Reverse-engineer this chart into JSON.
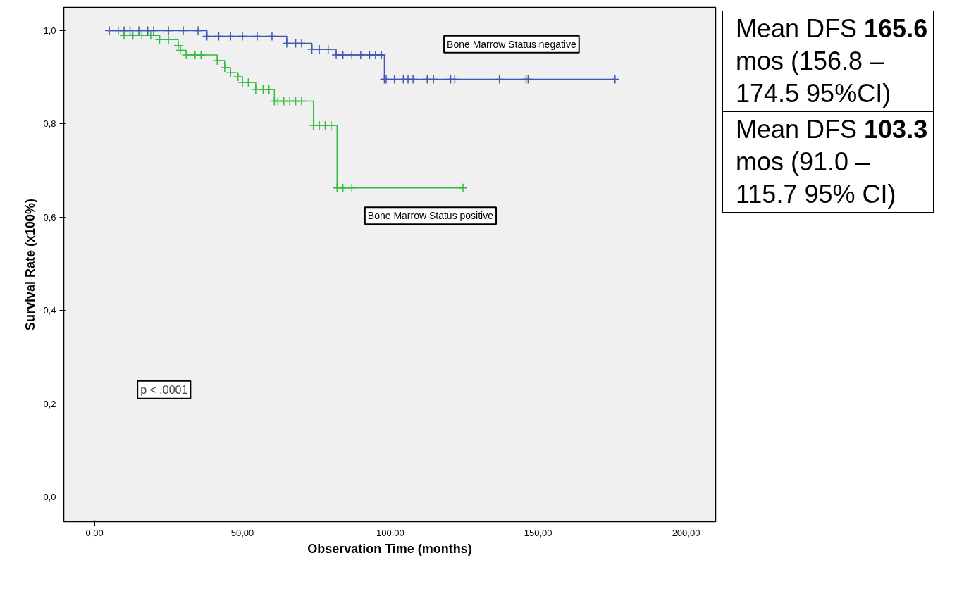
{
  "chart_data": {
    "type": "step",
    "xlabel": "Observation Time (months)",
    "ylabel": "Survival Rate (x100%)",
    "xlim": [
      -10.4,
      210
    ],
    "ylim": [
      -0.053,
      1.05
    ],
    "xticks": [
      {
        "value": 0,
        "label": "0,00"
      },
      {
        "value": 50,
        "label": "50,00"
      },
      {
        "value": 100,
        "label": "100,00"
      },
      {
        "value": 150,
        "label": "150,00"
      },
      {
        "value": 200,
        "label": "200,00"
      }
    ],
    "yticks": [
      {
        "value": 0,
        "label": "0,0"
      },
      {
        "value": 0.2,
        "label": "0,2"
      },
      {
        "value": 0.4,
        "label": "0,4"
      },
      {
        "value": 0.6,
        "label": "0,6"
      },
      {
        "value": 0.8,
        "label": "0,8"
      },
      {
        "value": 1.0,
        "label": "1,0"
      }
    ],
    "grid": false,
    "marker": "cross",
    "line_style": "solid",
    "series": [
      {
        "name": "Bone Marrow Status negative",
        "color": "#3f57b0",
        "x": [
          5,
          8,
          10,
          12,
          15,
          18,
          20,
          25,
          30,
          35,
          38,
          42,
          46,
          50,
          55,
          60,
          65,
          68,
          70,
          73.5,
          76,
          79,
          81.7,
          84,
          87,
          90,
          93,
          95,
          97,
          98,
          98.6,
          101.4,
          104.4,
          106,
          107.7,
          112.5,
          114.6,
          120.4,
          121.8,
          136.9,
          145.9,
          146.6,
          176
        ],
        "values": [
          1.0,
          1.0,
          1.0,
          1.0,
          1.0,
          1.0,
          1.0,
          1.0,
          1.0,
          1.0,
          0.988,
          0.988,
          0.988,
          0.988,
          0.988,
          0.988,
          0.973,
          0.973,
          0.973,
          0.96,
          0.96,
          0.96,
          0.948,
          0.948,
          0.948,
          0.948,
          0.948,
          0.948,
          0.948,
          0.896,
          0.896,
          0.896,
          0.896,
          0.896,
          0.896,
          0.896,
          0.896,
          0.896,
          0.896,
          0.896,
          0.896,
          0.896,
          0.896
        ]
      },
      {
        "name": "Bone Marrow Status positive",
        "color": "#33bb44",
        "x": [
          10,
          13,
          16,
          19,
          22,
          25,
          28.3,
          29,
          31,
          34,
          36,
          41.5,
          44,
          46,
          48.5,
          50,
          52,
          54.5,
          57,
          59,
          60.8,
          62,
          64,
          66,
          68,
          70,
          74,
          76,
          78,
          80,
          82,
          84,
          87,
          124.6
        ],
        "values": [
          0.99,
          0.99,
          0.99,
          0.99,
          0.981,
          0.981,
          0.968,
          0.958,
          0.948,
          0.948,
          0.948,
          0.936,
          0.921,
          0.91,
          0.901,
          0.889,
          0.889,
          0.874,
          0.874,
          0.874,
          0.849,
          0.849,
          0.849,
          0.849,
          0.849,
          0.849,
          0.797,
          0.797,
          0.797,
          0.797,
          0.663,
          0.663,
          0.663,
          0.663
        ]
      }
    ],
    "annotations": [
      "p < .0001",
      "Mean DFS 165.6 mos (156.8 – 174.5 95%CI)",
      "Mean DFS 103.3 mos (91.0 – 115.7 95% CI)"
    ]
  }
}
